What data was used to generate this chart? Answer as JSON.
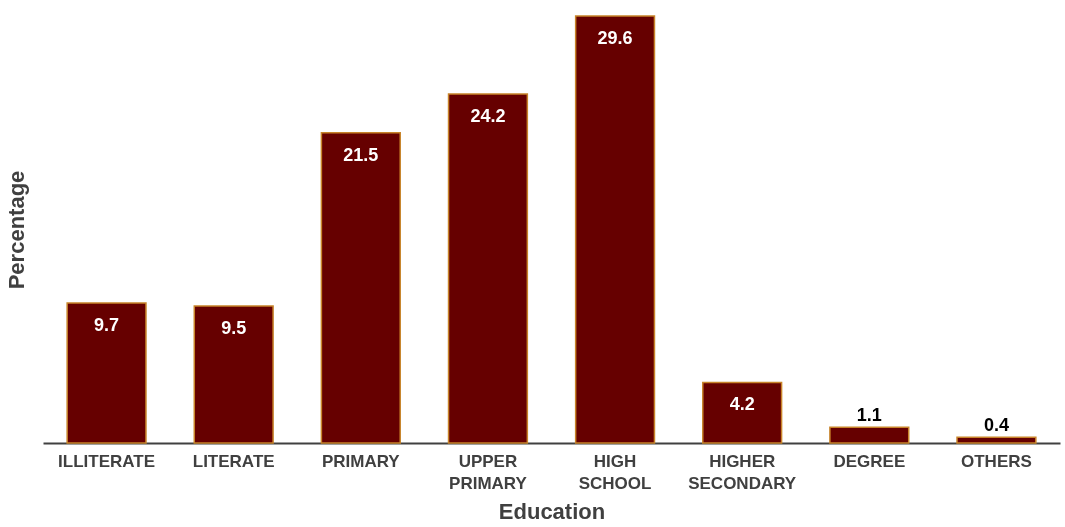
{
  "chart_data": {
    "type": "bar",
    "xlabel": "Education",
    "ylabel": "Percentage",
    "categories": [
      "ILLITERATE",
      "LITERATE",
      "PRIMARY",
      "UPPER PRIMARY",
      "HIGH SCHOOL",
      "HIGHER SECONDARY",
      "DEGREE",
      "OTHERS"
    ],
    "values": [
      9.7,
      9.5,
      21.5,
      24.2,
      29.6,
      4.2,
      1.1,
      0.4
    ],
    "color": "#660000",
    "data_labels": true,
    "grid": false
  }
}
